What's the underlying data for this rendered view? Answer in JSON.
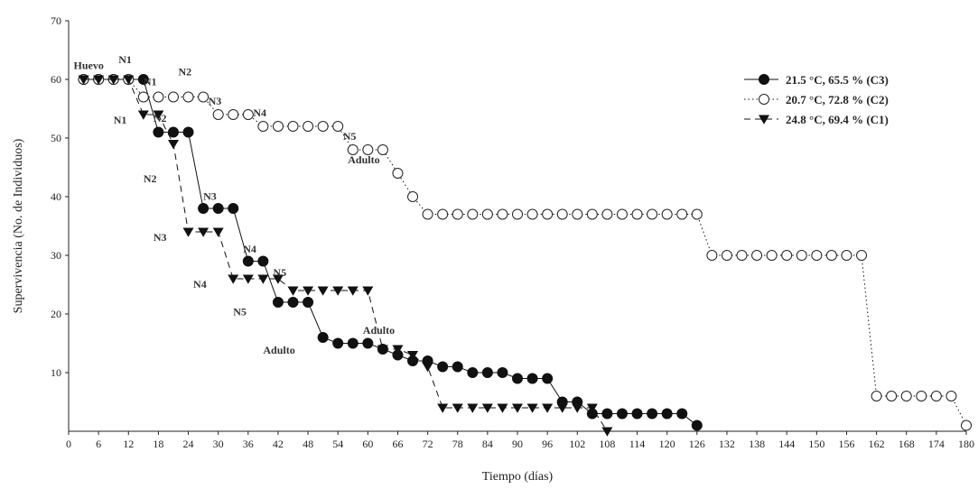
{
  "chart_data": {
    "type": "line",
    "xlabel": "Tiempo (días)",
    "ylabel": "Supervivencia (No. de Individuos)",
    "xlim": [
      0,
      180
    ],
    "ylim": [
      0,
      70
    ],
    "xticks": [
      0,
      6,
      12,
      18,
      24,
      30,
      36,
      42,
      48,
      54,
      60,
      66,
      72,
      78,
      84,
      90,
      96,
      102,
      108,
      114,
      120,
      126,
      132,
      138,
      144,
      150,
      156,
      162,
      168,
      174,
      180
    ],
    "yticks": [
      10,
      20,
      30,
      40,
      50,
      60,
      70
    ],
    "grid": false,
    "legend_position": "top-right",
    "series": [
      {
        "name": "21.5 °C, 65.5 % (C3)",
        "marker": "filled-circle",
        "line": "solid",
        "color": "#111111",
        "x": [
          3,
          6,
          9,
          12,
          15,
          18,
          21,
          24,
          27,
          30,
          33,
          36,
          39,
          42,
          45,
          48,
          51,
          54,
          57,
          60,
          63,
          66,
          69,
          72,
          75,
          78,
          81,
          84,
          87,
          90,
          93,
          96,
          99,
          102,
          105,
          108,
          111,
          114,
          117,
          120,
          123,
          126
        ],
        "y": [
          60,
          60,
          60,
          60,
          60,
          51,
          51,
          51,
          38,
          38,
          38,
          29,
          29,
          22,
          22,
          22,
          16,
          15,
          15,
          15,
          14,
          13,
          12,
          12,
          11,
          11,
          10,
          10,
          10,
          9,
          9,
          9,
          5,
          5,
          3,
          3,
          3,
          3,
          3,
          3,
          3,
          1
        ]
      },
      {
        "name": "20.7 °C, 72.8 % (C2)",
        "marker": "open-circle",
        "line": "dotted",
        "color": "#111111",
        "x": [
          3,
          6,
          9,
          12,
          15,
          18,
          21,
          24,
          27,
          30,
          33,
          36,
          39,
          42,
          45,
          48,
          51,
          54,
          57,
          60,
          63,
          66,
          69,
          72,
          75,
          78,
          81,
          84,
          87,
          90,
          93,
          96,
          99,
          102,
          105,
          108,
          111,
          114,
          117,
          120,
          123,
          126,
          129,
          132,
          135,
          138,
          141,
          144,
          147,
          150,
          153,
          156,
          159,
          162,
          165,
          168,
          171,
          174,
          177,
          180
        ],
        "y": [
          60,
          60,
          60,
          60,
          57,
          57,
          57,
          57,
          57,
          54,
          54,
          54,
          52,
          52,
          52,
          52,
          52,
          52,
          48,
          48,
          48,
          44,
          40,
          37,
          37,
          37,
          37,
          37,
          37,
          37,
          37,
          37,
          37,
          37,
          37,
          37,
          37,
          37,
          37,
          37,
          37,
          37,
          30,
          30,
          30,
          30,
          30,
          30,
          30,
          30,
          30,
          30,
          30,
          6,
          6,
          6,
          6,
          6,
          6,
          1
        ]
      },
      {
        "name": "24.8 °C, 69.4 % (C1)",
        "marker": "filled-triangle-down",
        "line": "dashed",
        "color": "#111111",
        "x": [
          3,
          6,
          9,
          12,
          15,
          18,
          21,
          24,
          27,
          30,
          33,
          36,
          39,
          42,
          45,
          48,
          51,
          54,
          57,
          60,
          63,
          66,
          69,
          72,
          75,
          78,
          81,
          84,
          87,
          90,
          93,
          96,
          99,
          102,
          105,
          108
        ],
        "y": [
          60,
          60,
          60,
          60,
          54,
          54,
          49,
          34,
          34,
          34,
          26,
          26,
          26,
          26,
          24,
          24,
          24,
          24,
          24,
          24,
          14,
          14,
          13,
          11,
          4,
          4,
          4,
          4,
          4,
          4,
          4,
          4,
          4,
          4,
          4,
          0
        ]
      }
    ],
    "annotations": [
      {
        "text": "Huevo",
        "x": 1,
        "y": 61.8
      },
      {
        "text": "N1",
        "x": 10,
        "y": 62.8
      },
      {
        "text": "N1",
        "x": 15,
        "y": 59
      },
      {
        "text": "N2",
        "x": 22,
        "y": 60.7
      },
      {
        "text": "N3",
        "x": 28,
        "y": 55.7
      },
      {
        "text": "N4",
        "x": 37,
        "y": 53.7
      },
      {
        "text": "N5",
        "x": 55,
        "y": 49.7
      },
      {
        "text": "Adulto",
        "x": 56,
        "y": 45.7
      },
      {
        "text": "N1",
        "x": 9,
        "y": 52.5
      },
      {
        "text": "N2",
        "x": 17,
        "y": 52.8
      },
      {
        "text": "N2",
        "x": 15,
        "y": 42.5
      },
      {
        "text": "N3",
        "x": 27,
        "y": 39.5
      },
      {
        "text": "N3",
        "x": 17,
        "y": 32.5
      },
      {
        "text": "N4",
        "x": 35,
        "y": 30.5
      },
      {
        "text": "N4",
        "x": 25,
        "y": 24.5
      },
      {
        "text": "N5",
        "x": 41,
        "y": 26.5
      },
      {
        "text": "N5",
        "x": 33,
        "y": 19.8
      },
      {
        "text": "Adulto",
        "x": 39,
        "y": 13.2
      },
      {
        "text": "Adulto",
        "x": 59,
        "y": 16.6
      }
    ]
  }
}
